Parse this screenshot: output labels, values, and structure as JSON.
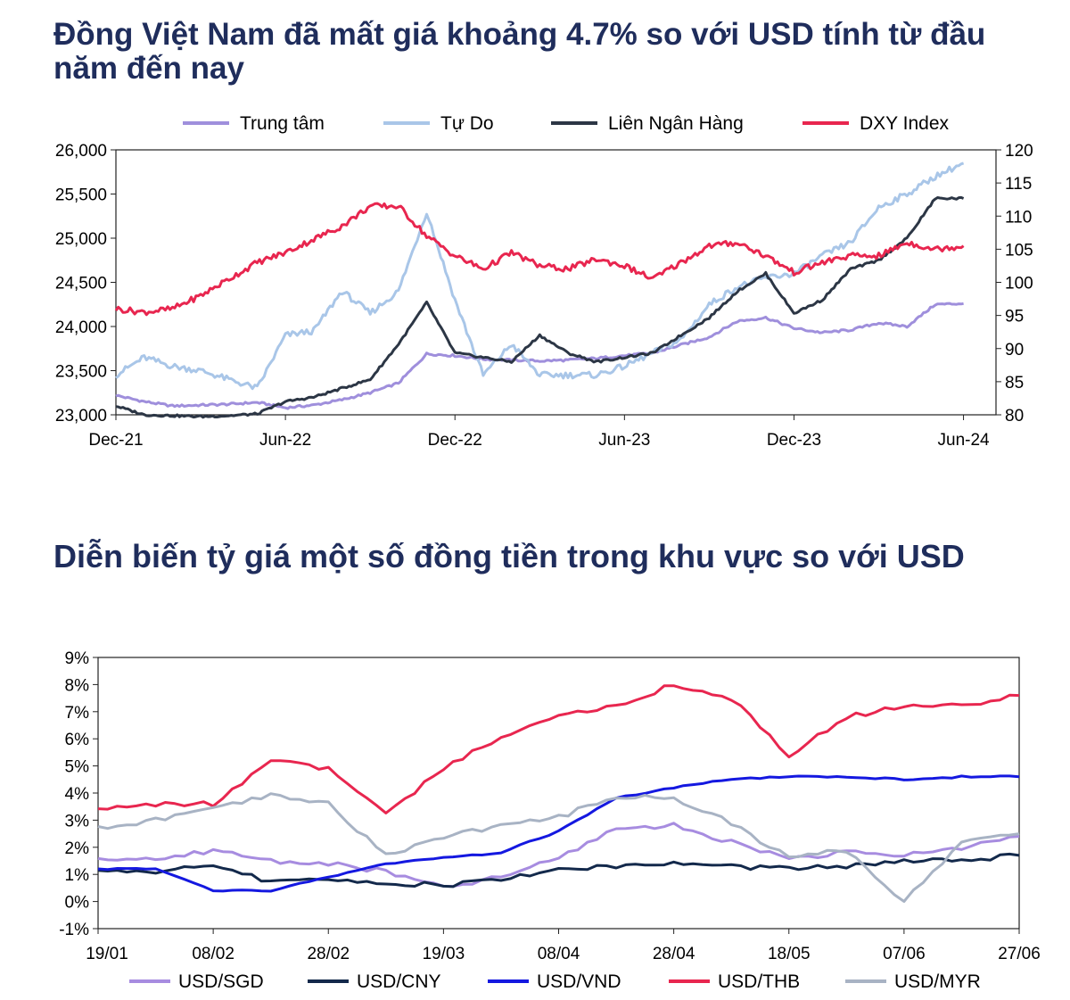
{
  "chart_data": [
    {
      "type": "line",
      "title": "Đồng Việt Nam đã mất giá khoảng 4.7% so với USD tính từ đầu năm đến nay",
      "x_tick_labels": [
        "Dec-21",
        "Jun-22",
        "Dec-22",
        "Jun-23",
        "Dec-23",
        "Jun-24"
      ],
      "y_left_ticks": [
        "23,000",
        "23,500",
        "24,000",
        "24,500",
        "25,000",
        "25,500",
        "26,000"
      ],
      "y_right_ticks": [
        "80",
        "85",
        "90",
        "95",
        "100",
        "105",
        "110",
        "115",
        "120"
      ],
      "ylim_left": [
        23000,
        26000
      ],
      "ylim_right": [
        80,
        120
      ],
      "x_range_months": [
        "Dec-21",
        "Jul-24"
      ],
      "legend_position": "top",
      "series": [
        {
          "name": "Trung tâm",
          "axis": "left",
          "color": "#9f8fdc",
          "x": [
            "Dec-21",
            "Jan-22",
            "Feb-22",
            "Mar-22",
            "Apr-22",
            "May-22",
            "Jun-22",
            "Jul-22",
            "Aug-22",
            "Sep-22",
            "Oct-22",
            "Nov-22",
            "Dec-22",
            "Jan-23",
            "Feb-23",
            "Mar-23",
            "Apr-23",
            "May-23",
            "Jun-23",
            "Jul-23",
            "Aug-23",
            "Sep-23",
            "Oct-23",
            "Nov-23",
            "Dec-23",
            "Jan-24",
            "Feb-24",
            "Mar-24",
            "Apr-24",
            "May-24",
            "Jun-24"
          ],
          "values": [
            23220,
            23150,
            23100,
            23110,
            23120,
            23140,
            23080,
            23110,
            23170,
            23250,
            23360,
            23690,
            23670,
            23630,
            23620,
            23610,
            23620,
            23640,
            23670,
            23700,
            23790,
            23880,
            24060,
            24100,
            23980,
            23930,
            23960,
            24040,
            24000,
            24250,
            24260
          ]
        },
        {
          "name": "Tự Do",
          "axis": "left",
          "color": "#a9c6e8",
          "x": [
            "Dec-21",
            "Jan-22",
            "Feb-22",
            "Mar-22",
            "Apr-22",
            "May-22",
            "Jun-22",
            "Jul-22",
            "Aug-22",
            "Sep-22",
            "Oct-22",
            "Nov-22",
            "Dec-22",
            "Jan-23",
            "Feb-23",
            "Mar-23",
            "Apr-23",
            "May-23",
            "Jun-23",
            "Jul-23",
            "Aug-23",
            "Sep-23",
            "Oct-23",
            "Nov-23",
            "Dec-23",
            "Jan-24",
            "Feb-24",
            "Mar-24",
            "Apr-24",
            "May-24",
            "Jun-24"
          ],
          "values": [
            23450,
            23650,
            23550,
            23500,
            23400,
            23300,
            23900,
            23950,
            24400,
            24150,
            24400,
            25300,
            24300,
            23450,
            23800,
            23450,
            23450,
            23450,
            23550,
            23700,
            23850,
            24250,
            24450,
            24550,
            24600,
            24800,
            24950,
            25350,
            25500,
            25700,
            25850
          ]
        },
        {
          "name": "Liên Ngân Hàng",
          "axis": "left",
          "color": "#2c3645",
          "x": [
            "Dec-21",
            "Jan-22",
            "Feb-22",
            "Mar-22",
            "Apr-22",
            "May-22",
            "Jun-22",
            "Jul-22",
            "Aug-22",
            "Sep-22",
            "Oct-22",
            "Nov-22",
            "Dec-22",
            "Jan-23",
            "Feb-23",
            "Mar-23",
            "Apr-23",
            "May-23",
            "Jun-23",
            "Jul-23",
            "Aug-23",
            "Sep-23",
            "Oct-23",
            "Nov-23",
            "Dec-23",
            "Jan-24",
            "Feb-24",
            "Mar-24",
            "Apr-24",
            "May-24",
            "Jun-24"
          ],
          "values": [
            23100,
            23000,
            22990,
            22980,
            22990,
            23010,
            23150,
            23200,
            23300,
            23400,
            23800,
            24270,
            23700,
            23650,
            23600,
            23900,
            23700,
            23600,
            23650,
            23700,
            23900,
            24100,
            24400,
            24600,
            24150,
            24300,
            24650,
            24750,
            25000,
            25450,
            25450
          ]
        },
        {
          "name": "DXY Index",
          "axis": "right",
          "color": "#e8264f",
          "x": [
            "Dec-21",
            "Jan-22",
            "Feb-22",
            "Mar-22",
            "Apr-22",
            "May-22",
            "Jun-22",
            "Jul-22",
            "Aug-22",
            "Sep-22",
            "Oct-22",
            "Nov-22",
            "Dec-22",
            "Jan-23",
            "Feb-23",
            "Mar-23",
            "Apr-23",
            "May-23",
            "Jun-23",
            "Jul-23",
            "Aug-23",
            "Sep-23",
            "Oct-23",
            "Nov-23",
            "Dec-23",
            "Jan-24",
            "Feb-24",
            "Mar-24",
            "Apr-24",
            "May-24",
            "Jun-24"
          ],
          "values": [
            96,
            95.5,
            96,
            98,
            100.5,
            103,
            104.5,
            106.5,
            108.5,
            111.5,
            111.5,
            107,
            104,
            102,
            104.5,
            102.5,
            102,
            103.5,
            102.5,
            100.5,
            103,
            105.5,
            106,
            104,
            101.5,
            103,
            104,
            104,
            106,
            105,
            105.5
          ]
        }
      ]
    },
    {
      "type": "line",
      "title": "Diễn biến tỷ giá một số đồng tiền trong khu vực so với USD",
      "x_tick_labels": [
        "19/01",
        "08/02",
        "28/02",
        "19/03",
        "08/04",
        "28/04",
        "18/05",
        "07/06",
        "27/06"
      ],
      "y_tick_labels": [
        "-1%",
        "0%",
        "1%",
        "2%",
        "3%",
        "4%",
        "5%",
        "6%",
        "7%",
        "8%",
        "9%"
      ],
      "ylim": [
        -1,
        9
      ],
      "legend_position": "bottom",
      "series": [
        {
          "name": "USD/SGD",
          "color": "#a78ce0",
          "x": [
            "19/01",
            "29/01",
            "08/02",
            "18/02",
            "28/02",
            "09/03",
            "19/03",
            "29/03",
            "08/04",
            "18/04",
            "28/04",
            "08/05",
            "18/05",
            "28/05",
            "07/06",
            "17/06",
            "27/06"
          ],
          "values": [
            1.6,
            1.5,
            1.9,
            1.5,
            1.4,
            1.1,
            0.5,
            0.9,
            1.6,
            2.7,
            2.8,
            2.2,
            1.6,
            1.8,
            1.7,
            2.0,
            2.4
          ]
        },
        {
          "name": "USD/CNY",
          "color": "#13294b",
          "x": [
            "19/01",
            "29/01",
            "08/02",
            "18/02",
            "28/02",
            "09/03",
            "19/03",
            "29/03",
            "08/04",
            "18/04",
            "28/04",
            "08/05",
            "18/05",
            "28/05",
            "07/06",
            "17/06",
            "27/06"
          ],
          "values": [
            1.2,
            1.0,
            1.4,
            0.7,
            0.8,
            0.7,
            0.6,
            0.8,
            1.2,
            1.3,
            1.4,
            1.3,
            1.2,
            1.3,
            1.5,
            1.5,
            1.7
          ]
        },
        {
          "name": "USD/VND",
          "color": "#1418e0",
          "x": [
            "19/01",
            "29/01",
            "08/02",
            "18/02",
            "28/02",
            "09/03",
            "19/03",
            "29/03",
            "08/04",
            "18/04",
            "28/04",
            "08/05",
            "18/05",
            "28/05",
            "07/06",
            "17/06",
            "27/06"
          ],
          "values": [
            1.2,
            1.2,
            0.4,
            0.4,
            0.9,
            1.4,
            1.6,
            1.8,
            2.6,
            3.8,
            4.2,
            4.5,
            4.6,
            4.6,
            4.5,
            4.6,
            4.6
          ]
        },
        {
          "name": "USD/THB",
          "color": "#e8264f",
          "x": [
            "19/01",
            "29/01",
            "08/02",
            "18/02",
            "28/02",
            "09/03",
            "19/03",
            "29/03",
            "08/04",
            "18/04",
            "28/04",
            "08/05",
            "18/05",
            "28/05",
            "07/06",
            "17/06",
            "27/06"
          ],
          "values": [
            3.4,
            3.6,
            3.6,
            5.2,
            4.9,
            3.2,
            4.9,
            6.1,
            6.9,
            7.2,
            8.0,
            7.5,
            5.4,
            6.8,
            7.2,
            7.2,
            7.6
          ]
        },
        {
          "name": "USD/MYR",
          "color": "#a8b3c4",
          "x": [
            "19/01",
            "29/01",
            "08/02",
            "18/02",
            "28/02",
            "09/03",
            "19/03",
            "29/03",
            "08/04",
            "18/04",
            "28/04",
            "08/05",
            "18/05",
            "28/05",
            "07/06",
            "17/06",
            "27/06"
          ],
          "values": [
            2.7,
            3.0,
            3.4,
            3.9,
            3.6,
            1.7,
            2.4,
            2.8,
            3.1,
            3.9,
            3.8,
            2.9,
            1.6,
            1.9,
            0.0,
            2.2,
            2.5
          ]
        }
      ]
    }
  ]
}
